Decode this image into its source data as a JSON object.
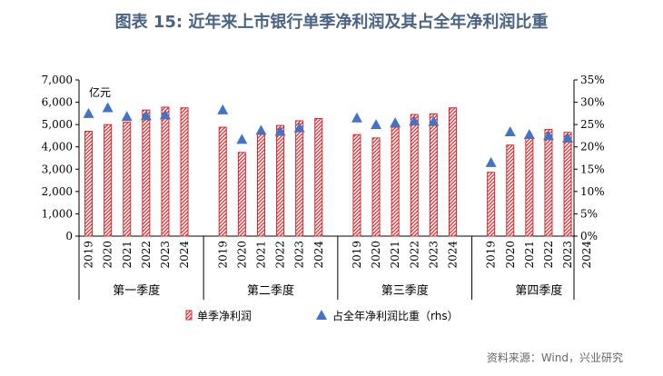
{
  "title": "图表 15: 近年来上市银行单季净利润及其占全年净利润比重",
  "source": "资料来源：Wind，兴业研究",
  "chart_data": {
    "type": "bar",
    "unit_label": "亿元",
    "groups": [
      "第一季度",
      "第二季度",
      "第三季度",
      "第四季度"
    ],
    "years": [
      "2019",
      "2020",
      "2021",
      "2022",
      "2023",
      "2024"
    ],
    "series": [
      {
        "name": "单季净利润",
        "type": "bar",
        "axis": "left",
        "values": [
          [
            4700,
            5000,
            5100,
            5650,
            5780,
            5750
          ],
          [
            4880,
            3750,
            4650,
            4960,
            5170,
            5270
          ],
          [
            4550,
            4400,
            4880,
            5450,
            5480,
            5750
          ],
          [
            2860,
            4080,
            4420,
            4780,
            4650,
            null
          ]
        ]
      },
      {
        "name": "占全年净利润比重（rhs）",
        "type": "scatter",
        "axis": "right",
        "values": [
          [
            27.5,
            28.8,
            26.8,
            27.0,
            27.2,
            null
          ],
          [
            28.3,
            21.7,
            23.7,
            23.5,
            24.3,
            null
          ],
          [
            26.5,
            25.0,
            25.4,
            25.8,
            25.7,
            null
          ],
          [
            16.5,
            23.4,
            22.8,
            22.5,
            22.0,
            null
          ]
        ]
      }
    ],
    "left_axis": {
      "min": 0,
      "max": 7000,
      "step": 1000,
      "ticks": [
        "0",
        "1,000",
        "2,000",
        "3,000",
        "4,000",
        "5,000",
        "6,000",
        "7,000"
      ]
    },
    "right_axis": {
      "min": 0,
      "max": 35,
      "step": 5,
      "ticks": [
        "0%",
        "5%",
        "10%",
        "15%",
        "20%",
        "25%",
        "30%",
        "35%"
      ]
    },
    "colors": {
      "bar": "#d9262c",
      "marker": "#4472c4"
    },
    "legend_position": "bottom"
  }
}
